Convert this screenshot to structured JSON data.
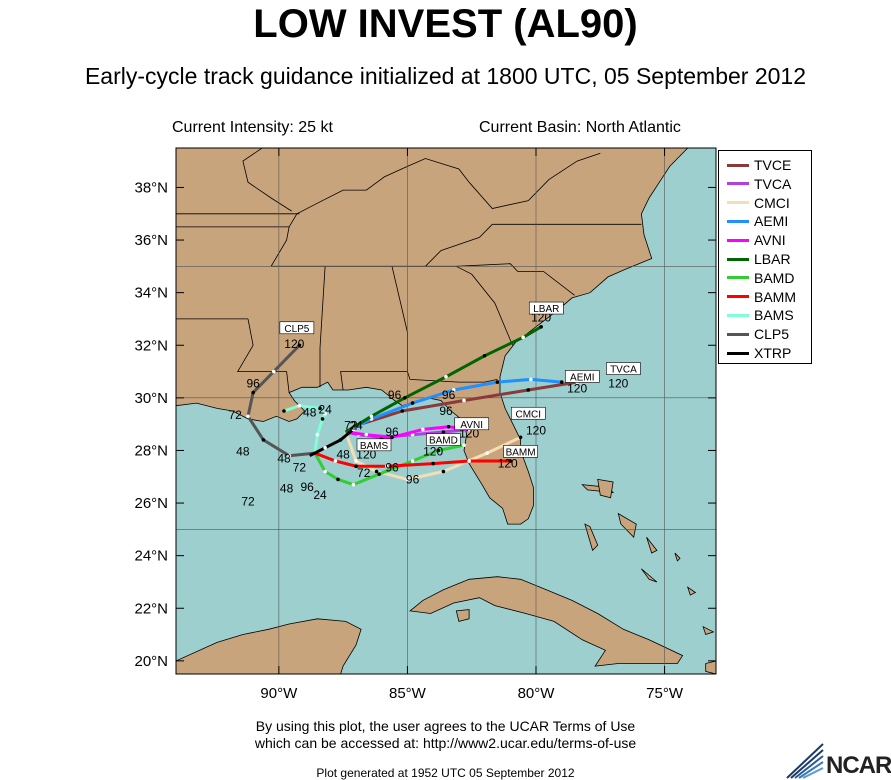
{
  "title": "LOW INVEST (AL90)",
  "subtitle": "Early-cycle track guidance initialized at 1800 UTC, 05 September 2012",
  "current_intensity": "Current Intensity: 25 kt",
  "current_basin": "Current Basin: North Atlantic",
  "terms_line1": "By using this plot, the user agrees to the UCAR Terms of Use",
  "terms_line2": "which can be accessed at: http://www2.ucar.edu/terms-of-use",
  "generated": "Plot generated at 1952 UTC   05 September 2012",
  "logo": "NCAR",
  "map": {
    "lon_range": [
      -94,
      -73
    ],
    "lat_range": [
      19.5,
      39.5
    ],
    "lat_ticks": [
      "20°N",
      "22°N",
      "24°N",
      "26°N",
      "28°N",
      "30°N",
      "32°N",
      "34°N",
      "36°N",
      "38°N"
    ],
    "lon_ticks": [
      "90°W",
      "85°W",
      "80°W",
      "75°W"
    ],
    "colors": {
      "ocean": "#9dcfcf",
      "land": "#c8a47c",
      "border": "#000000"
    }
  },
  "legend": [
    {
      "name": "TVCE",
      "color": "#8b3a3a"
    },
    {
      "name": "TVCA",
      "color": "#b040e0"
    },
    {
      "name": "CMCI",
      "color": "#f5deb3"
    },
    {
      "name": "AEMI",
      "color": "#1e90ff"
    },
    {
      "name": "AVNI",
      "color": "#ff00ff"
    },
    {
      "name": "LBAR",
      "color": "#006400"
    },
    {
      "name": "BAMD",
      "color": "#32cd32"
    },
    {
      "name": "BAMM",
      "color": "#ff0000"
    },
    {
      "name": "BAMS",
      "color": "#7fffd4"
    },
    {
      "name": "CLP5",
      "color": "#555555"
    },
    {
      "name": "XTRP",
      "color": "#000000"
    }
  ],
  "tracks": [
    {
      "model": "TVCE",
      "color": "#8b3a3a",
      "end_label": "TVCA",
      "points": [
        [
          -87.4,
          28.7
        ],
        [
          -86.8,
          29.0
        ],
        [
          -85.2,
          29.5
        ],
        [
          -82.8,
          29.9
        ],
        [
          -80.3,
          30.3
        ],
        [
          -78.4,
          30.6
        ]
      ]
    },
    {
      "model": "TVCA",
      "color": "#b040e0",
      "points": [
        [
          -87.4,
          28.7
        ],
        [
          -86.9,
          28.6
        ],
        [
          -86.0,
          28.5
        ],
        [
          -84.8,
          28.6
        ],
        [
          -83.6,
          28.7
        ],
        [
          -82.6,
          28.8
        ]
      ]
    },
    {
      "model": "CMCI",
      "color": "#f5deb3",
      "end_label": "CMCI",
      "points": [
        [
          -87.4,
          28.7
        ],
        [
          -87.0,
          27.6
        ],
        [
          -86.2,
          27.2
        ],
        [
          -85.0,
          26.9
        ],
        [
          -83.6,
          27.2
        ],
        [
          -81.9,
          27.9
        ],
        [
          -80.6,
          28.5
        ]
      ]
    },
    {
      "model": "AEMI",
      "color": "#1e90ff",
      "end_label": "AEMI",
      "points": [
        [
          -87.4,
          28.7
        ],
        [
          -86.4,
          29.2
        ],
        [
          -84.8,
          29.8
        ],
        [
          -83.2,
          30.3
        ],
        [
          -81.5,
          30.6
        ],
        [
          -80.2,
          30.7
        ],
        [
          -79.0,
          30.6
        ]
      ]
    },
    {
      "model": "AVNI",
      "color": "#ff00ff",
      "end_label": "AVNI",
      "points": [
        [
          -87.4,
          28.7
        ],
        [
          -86.6,
          28.6
        ],
        [
          -85.6,
          28.5
        ],
        [
          -84.4,
          28.8
        ],
        [
          -83.4,
          28.9
        ],
        [
          -82.6,
          28.8
        ]
      ]
    },
    {
      "model": "LBAR",
      "color": "#006400",
      "end_label": "LBAR",
      "points": [
        [
          -87.4,
          28.7
        ],
        [
          -86.4,
          29.3
        ],
        [
          -85.1,
          30.0
        ],
        [
          -83.5,
          30.8
        ],
        [
          -82.0,
          31.6
        ],
        [
          -80.5,
          32.3
        ],
        [
          -79.8,
          32.7
        ]
      ]
    },
    {
      "model": "BAMD",
      "color": "#32cd32",
      "end_label": "BAMD",
      "points": [
        [
          -88.6,
          27.9
        ],
        [
          -88.2,
          27.2
        ],
        [
          -87.7,
          26.9
        ],
        [
          -87.1,
          26.7
        ],
        [
          -86.1,
          27.1
        ],
        [
          -84.8,
          27.6
        ],
        [
          -83.8,
          28.0
        ],
        [
          -82.8,
          28.2
        ]
      ]
    },
    {
      "model": "BAMM",
      "color": "#ff0000",
      "end_label": "BAMM",
      "points": [
        [
          -88.6,
          27.9
        ],
        [
          -87.8,
          27.6
        ],
        [
          -87.0,
          27.4
        ],
        [
          -85.8,
          27.4
        ],
        [
          -84.0,
          27.5
        ],
        [
          -82.6,
          27.6
        ],
        [
          -81.0,
          27.6
        ]
      ]
    },
    {
      "model": "BAMS",
      "color": "#7fffd4",
      "end_label": "BAMS",
      "points": [
        [
          -88.6,
          27.9
        ],
        [
          -88.5,
          28.6
        ],
        [
          -88.3,
          29.2
        ],
        [
          -88.2,
          29.4
        ],
        [
          -88.4,
          29.6
        ],
        [
          -89.2,
          29.7
        ],
        [
          -89.8,
          29.5
        ]
      ]
    },
    {
      "model": "CLP5",
      "color": "#555555",
      "end_label": "CLP5",
      "points": [
        [
          -88.6,
          27.9
        ],
        [
          -89.6,
          27.8
        ],
        [
          -90.6,
          28.4
        ],
        [
          -91.2,
          29.3
        ],
        [
          -91.0,
          30.2
        ],
        [
          -90.2,
          31.0
        ],
        [
          -89.2,
          32.0
        ]
      ]
    },
    {
      "model": "XTRP",
      "color": "#000000",
      "points": [
        [
          -88.8,
          27.8
        ],
        [
          -88.2,
          28.1
        ],
        [
          -87.6,
          28.4
        ],
        [
          -87.1,
          28.8
        ]
      ]
    }
  ],
  "track_labels": [
    {
      "text": "24",
      "lon": -87.0,
      "lat": 28.8
    },
    {
      "text": "72",
      "lon": -87.2,
      "lat": 28.8
    },
    {
      "text": "96",
      "lon": -85.5,
      "lat": 29.95
    },
    {
      "text": "96",
      "lon": -83.4,
      "lat": 29.95
    },
    {
      "text": "96",
      "lon": -83.5,
      "lat": 29.35
    },
    {
      "text": "96",
      "lon": -85.6,
      "lat": 28.55
    },
    {
      "text": "96",
      "lon": -85.6,
      "lat": 27.2
    },
    {
      "text": "96",
      "lon": -84.8,
      "lat": 26.75
    },
    {
      "text": "96",
      "lon": -88.9,
      "lat": 26.45
    },
    {
      "text": "96",
      "lon": -91.0,
      "lat": 30.4
    },
    {
      "text": "24",
      "lon": -88.2,
      "lat": 29.4
    },
    {
      "text": "24",
      "lon": -88.4,
      "lat": 26.15
    },
    {
      "text": "48",
      "lon": -89.7,
      "lat": 26.4
    },
    {
      "text": "48",
      "lon": -88.8,
      "lat": 29.3
    },
    {
      "text": "48",
      "lon": -91.4,
      "lat": 27.8
    },
    {
      "text": "48",
      "lon": -89.8,
      "lat": 27.55
    },
    {
      "text": "48",
      "lon": -87.5,
      "lat": 27.7
    },
    {
      "text": "72",
      "lon": -91.7,
      "lat": 29.2
    },
    {
      "text": "72",
      "lon": -91.2,
      "lat": 25.9
    },
    {
      "text": "72",
      "lon": -89.2,
      "lat": 27.2
    },
    {
      "text": "72",
      "lon": -86.7,
      "lat": 27.0
    },
    {
      "text": "120",
      "lon": -79.8,
      "lat": 32.9
    },
    {
      "text": "120",
      "lon": -78.4,
      "lat": 30.2
    },
    {
      "text": "120",
      "lon": -76.8,
      "lat": 30.4
    },
    {
      "text": "120",
      "lon": -82.6,
      "lat": 28.5
    },
    {
      "text": "120",
      "lon": -80.0,
      "lat": 28.6
    },
    {
      "text": "120",
      "lon": -84.0,
      "lat": 27.8
    },
    {
      "text": "120",
      "lon": -81.1,
      "lat": 27.35
    },
    {
      "text": "120",
      "lon": -86.6,
      "lat": 27.7
    },
    {
      "text": "120",
      "lon": -89.4,
      "lat": 31.9
    }
  ],
  "box_labels": [
    {
      "text": "LBAR",
      "lon": -79.6,
      "lat": 33.3
    },
    {
      "text": "AEMI",
      "lon": -78.2,
      "lat": 30.7
    },
    {
      "text": "TVCA",
      "lon": -76.6,
      "lat": 31.0
    },
    {
      "text": "CMCI",
      "lon": -80.3,
      "lat": 29.3
    },
    {
      "text": "AVNI",
      "lon": -82.5,
      "lat": 28.9
    },
    {
      "text": "BAMD",
      "lon": -83.6,
      "lat": 28.3
    },
    {
      "text": "BAMM",
      "lon": -80.6,
      "lat": 27.85
    },
    {
      "text": "BAMS",
      "lon": -86.3,
      "lat": 28.1
    },
    {
      "text": "CLP5",
      "lon": -89.3,
      "lat": 32.55
    }
  ]
}
